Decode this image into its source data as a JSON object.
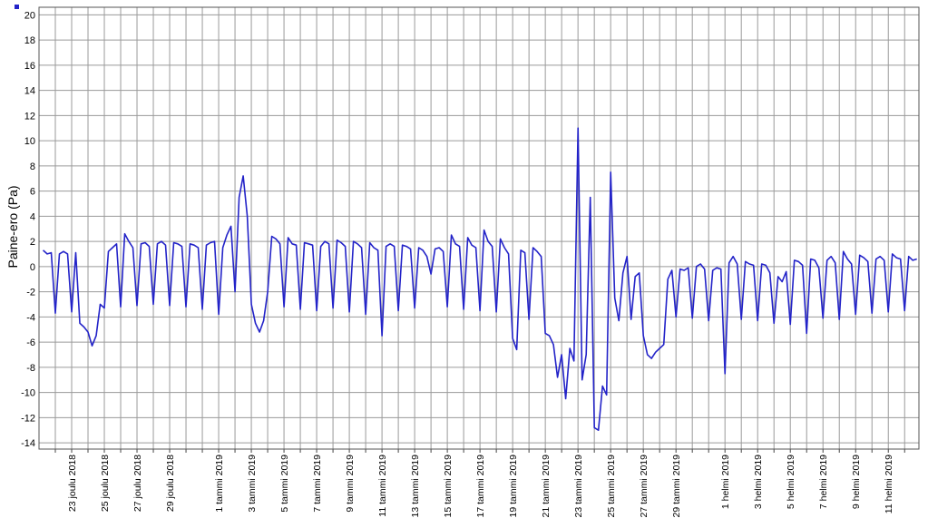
{
  "chart_data": {
    "type": "line",
    "ylabel": "Paine-ero (Pa)",
    "color": "#2323c8",
    "grid": true,
    "ylim": [
      -14.5,
      20.6
    ],
    "yticks": [
      -14,
      -12,
      -10,
      -8,
      -6,
      -4,
      -2,
      0,
      2,
      4,
      6,
      8,
      10,
      12,
      14,
      16,
      18,
      20
    ],
    "xlim": [
      "2018-12-21 00:00",
      "2019-02-12 21:00"
    ],
    "xticks": [
      {
        "value": "2018-12-22",
        "label": null
      },
      {
        "value": "2018-12-23",
        "label": "23 joulu 2018"
      },
      {
        "value": "2018-12-24",
        "label": null
      },
      {
        "value": "2018-12-25",
        "label": "25 joulu 2018"
      },
      {
        "value": "2018-12-26",
        "label": null
      },
      {
        "value": "2018-12-27",
        "label": "27 joulu 2018"
      },
      {
        "value": "2018-12-28",
        "label": null
      },
      {
        "value": "2018-12-29",
        "label": "29 joulu 2018"
      },
      {
        "value": "2018-12-30",
        "label": null
      },
      {
        "value": "2018-12-31",
        "label": null
      },
      {
        "value": "2019-01-01",
        "label": "1 tammi 2019"
      },
      {
        "value": "2019-01-02",
        "label": null
      },
      {
        "value": "2019-01-03",
        "label": "3 tammi 2019"
      },
      {
        "value": "2019-01-04",
        "label": null
      },
      {
        "value": "2019-01-05",
        "label": "5 tammi 2019"
      },
      {
        "value": "2019-01-06",
        "label": null
      },
      {
        "value": "2019-01-07",
        "label": "7 tammi 2019"
      },
      {
        "value": "2019-01-08",
        "label": null
      },
      {
        "value": "2019-01-09",
        "label": "9 tammi 2019"
      },
      {
        "value": "2019-01-10",
        "label": null
      },
      {
        "value": "2019-01-11",
        "label": "11 tammi 2019"
      },
      {
        "value": "2019-01-12",
        "label": null
      },
      {
        "value": "2019-01-13",
        "label": "13 tammi 2019"
      },
      {
        "value": "2019-01-14",
        "label": null
      },
      {
        "value": "2019-01-15",
        "label": "15 tammi 2019"
      },
      {
        "value": "2019-01-16",
        "label": null
      },
      {
        "value": "2019-01-17",
        "label": "17 tammi 2019"
      },
      {
        "value": "2019-01-18",
        "label": null
      },
      {
        "value": "2019-01-19",
        "label": "19 tammi 2019"
      },
      {
        "value": "2019-01-20",
        "label": null
      },
      {
        "value": "2019-01-21",
        "label": "21 tammi 2019"
      },
      {
        "value": "2019-01-22",
        "label": null
      },
      {
        "value": "2019-01-23",
        "label": "23 tammi 2019"
      },
      {
        "value": "2019-01-24",
        "label": null
      },
      {
        "value": "2019-01-25",
        "label": "25 tammi 2019"
      },
      {
        "value": "2019-01-26",
        "label": null
      },
      {
        "value": "2019-01-27",
        "label": "27 tammi 2019"
      },
      {
        "value": "2019-01-28",
        "label": null
      },
      {
        "value": "2019-01-29",
        "label": "29 tammi 2019"
      },
      {
        "value": "2019-01-30",
        "label": null
      },
      {
        "value": "2019-01-31",
        "label": null
      },
      {
        "value": "2019-02-01",
        "label": "1 helmi 2019"
      },
      {
        "value": "2019-02-02",
        "label": null
      },
      {
        "value": "2019-02-03",
        "label": "3 helmi 2019"
      },
      {
        "value": "2019-02-04",
        "label": null
      },
      {
        "value": "2019-02-05",
        "label": "5 helmi 2019"
      },
      {
        "value": "2019-02-06",
        "label": null
      },
      {
        "value": "2019-02-07",
        "label": "7 helmi 2019"
      },
      {
        "value": "2019-02-08",
        "label": null
      },
      {
        "value": "2019-02-09",
        "label": "9 helmi 2019"
      },
      {
        "value": "2019-02-10",
        "label": null
      },
      {
        "value": "2019-02-11",
        "label": "11 helmi 2019"
      },
      {
        "value": "2019-02-12",
        "label": null
      }
    ],
    "x": [
      "2018-12-21 06:00",
      "2018-12-21 12:00",
      "2018-12-21 18:00",
      "2018-12-22 00:00",
      "2018-12-22 06:00",
      "2018-12-22 12:00",
      "2018-12-22 18:00",
      "2018-12-23 00:00",
      "2018-12-23 06:00",
      "2018-12-23 12:00",
      "2018-12-23 18:00",
      "2018-12-24 00:00",
      "2018-12-24 06:00",
      "2018-12-24 12:00",
      "2018-12-24 18:00",
      "2018-12-25 00:00",
      "2018-12-25 06:00",
      "2018-12-25 12:00",
      "2018-12-25 18:00",
      "2018-12-26 00:00",
      "2018-12-26 06:00",
      "2018-12-26 12:00",
      "2018-12-26 18:00",
      "2018-12-27 00:00",
      "2018-12-27 06:00",
      "2018-12-27 12:00",
      "2018-12-27 18:00",
      "2018-12-28 00:00",
      "2018-12-28 06:00",
      "2018-12-28 12:00",
      "2018-12-28 18:00",
      "2018-12-29 00:00",
      "2018-12-29 06:00",
      "2018-12-29 12:00",
      "2018-12-29 18:00",
      "2018-12-30 00:00",
      "2018-12-30 06:00",
      "2018-12-30 12:00",
      "2018-12-30 18:00",
      "2018-12-31 00:00",
      "2018-12-31 06:00",
      "2018-12-31 12:00",
      "2018-12-31 18:00",
      "2019-01-01 00:00",
      "2019-01-01 06:00",
      "2019-01-01 12:00",
      "2019-01-01 18:00",
      "2019-01-02 00:00",
      "2019-01-02 06:00",
      "2019-01-02 12:00",
      "2019-01-02 18:00",
      "2019-01-03 00:00",
      "2019-01-03 06:00",
      "2019-01-03 12:00",
      "2019-01-03 18:00",
      "2019-01-04 00:00",
      "2019-01-04 06:00",
      "2019-01-04 12:00",
      "2019-01-04 18:00",
      "2019-01-05 00:00",
      "2019-01-05 06:00",
      "2019-01-05 12:00",
      "2019-01-05 18:00",
      "2019-01-06 00:00",
      "2019-01-06 06:00",
      "2019-01-06 12:00",
      "2019-01-06 18:00",
      "2019-01-07 00:00",
      "2019-01-07 06:00",
      "2019-01-07 12:00",
      "2019-01-07 18:00",
      "2019-01-08 00:00",
      "2019-01-08 06:00",
      "2019-01-08 12:00",
      "2019-01-08 18:00",
      "2019-01-09 00:00",
      "2019-01-09 06:00",
      "2019-01-09 12:00",
      "2019-01-09 18:00",
      "2019-01-10 00:00",
      "2019-01-10 06:00",
      "2019-01-10 12:00",
      "2019-01-10 18:00",
      "2019-01-11 00:00",
      "2019-01-11 06:00",
      "2019-01-11 12:00",
      "2019-01-11 18:00",
      "2019-01-12 00:00",
      "2019-01-12 06:00",
      "2019-01-12 12:00",
      "2019-01-12 18:00",
      "2019-01-13 00:00",
      "2019-01-13 06:00",
      "2019-01-13 12:00",
      "2019-01-13 18:00",
      "2019-01-14 00:00",
      "2019-01-14 06:00",
      "2019-01-14 12:00",
      "2019-01-14 18:00",
      "2019-01-15 00:00",
      "2019-01-15 06:00",
      "2019-01-15 12:00",
      "2019-01-15 18:00",
      "2019-01-16 00:00",
      "2019-01-16 06:00",
      "2019-01-16 12:00",
      "2019-01-16 18:00",
      "2019-01-17 00:00",
      "2019-01-17 06:00",
      "2019-01-17 12:00",
      "2019-01-17 18:00",
      "2019-01-18 00:00",
      "2019-01-18 06:00",
      "2019-01-18 12:00",
      "2019-01-18 18:00",
      "2019-01-19 00:00",
      "2019-01-19 06:00",
      "2019-01-19 12:00",
      "2019-01-19 18:00",
      "2019-01-20 00:00",
      "2019-01-20 06:00",
      "2019-01-20 12:00",
      "2019-01-20 18:00",
      "2019-01-21 00:00",
      "2019-01-21 06:00",
      "2019-01-21 12:00",
      "2019-01-21 18:00",
      "2019-01-22 00:00",
      "2019-01-22 06:00",
      "2019-01-22 12:00",
      "2019-01-22 18:00",
      "2019-01-23 00:00",
      "2019-01-23 06:00",
      "2019-01-23 12:00",
      "2019-01-23 18:00",
      "2019-01-24 00:00",
      "2019-01-24 06:00",
      "2019-01-24 12:00",
      "2019-01-24 18:00",
      "2019-01-25 00:00",
      "2019-01-25 06:00",
      "2019-01-25 12:00",
      "2019-01-25 18:00",
      "2019-01-26 00:00",
      "2019-01-26 06:00",
      "2019-01-26 12:00",
      "2019-01-26 18:00",
      "2019-01-27 00:00",
      "2019-01-27 06:00",
      "2019-01-27 12:00",
      "2019-01-27 18:00",
      "2019-01-28 00:00",
      "2019-01-28 06:00",
      "2019-01-28 12:00",
      "2019-01-28 18:00",
      "2019-01-29 00:00",
      "2019-01-29 06:00",
      "2019-01-29 12:00",
      "2019-01-29 18:00",
      "2019-01-30 00:00",
      "2019-01-30 06:00",
      "2019-01-30 12:00",
      "2019-01-30 18:00",
      "2019-01-31 00:00",
      "2019-01-31 06:00",
      "2019-01-31 12:00",
      "2019-01-31 18:00",
      "2019-02-01 00:00",
      "2019-02-01 06:00",
      "2019-02-01 12:00",
      "2019-02-01 18:00",
      "2019-02-02 00:00",
      "2019-02-02 06:00",
      "2019-02-02 12:00",
      "2019-02-02 18:00",
      "2019-02-03 00:00",
      "2019-02-03 06:00",
      "2019-02-03 12:00",
      "2019-02-03 18:00",
      "2019-02-04 00:00",
      "2019-02-04 06:00",
      "2019-02-04 12:00",
      "2019-02-04 18:00",
      "2019-02-05 00:00",
      "2019-02-05 06:00",
      "2019-02-05 12:00",
      "2019-02-05 18:00",
      "2019-02-06 00:00",
      "2019-02-06 06:00",
      "2019-02-06 12:00",
      "2019-02-06 18:00",
      "2019-02-07 00:00",
      "2019-02-07 06:00",
      "2019-02-07 12:00",
      "2019-02-07 18:00",
      "2019-02-08 00:00",
      "2019-02-08 06:00",
      "2019-02-08 12:00",
      "2019-02-08 18:00",
      "2019-02-09 00:00",
      "2019-02-09 06:00",
      "2019-02-09 12:00",
      "2019-02-09 18:00",
      "2019-02-10 00:00",
      "2019-02-10 06:00",
      "2019-02-10 12:00",
      "2019-02-10 18:00",
      "2019-02-11 00:00",
      "2019-02-11 06:00",
      "2019-02-11 12:00",
      "2019-02-11 18:00",
      "2019-02-12 00:00",
      "2019-02-12 06:00",
      "2019-02-12 12:00",
      "2019-02-12 18:00"
    ],
    "values": [
      1.3,
      1.0,
      1.1,
      -3.7,
      1.0,
      1.2,
      1.0,
      -3.6,
      1.1,
      -4.5,
      -4.8,
      -5.2,
      -6.3,
      -5.5,
      -3.0,
      -3.3,
      1.2,
      1.5,
      1.8,
      -3.2,
      2.6,
      2.0,
      1.5,
      -3.1,
      1.8,
      1.9,
      1.6,
      -3.0,
      1.8,
      2.0,
      1.7,
      -3.1,
      1.9,
      1.8,
      1.6,
      -3.2,
      1.8,
      1.7,
      1.5,
      -3.4,
      1.7,
      1.9,
      2.0,
      -3.8,
      1.5,
      2.5,
      3.2,
      -2.0,
      5.5,
      7.2,
      4.0,
      -3.0,
      -4.5,
      -5.2,
      -4.3,
      -2.0,
      2.4,
      2.2,
      1.8,
      -3.2,
      2.3,
      1.8,
      1.7,
      -3.4,
      1.9,
      1.8,
      1.7,
      -3.5,
      1.6,
      2.0,
      1.8,
      -3.3,
      2.1,
      1.9,
      1.6,
      -3.6,
      2.0,
      1.8,
      1.5,
      -3.8,
      1.9,
      1.5,
      1.3,
      -5.5,
      1.6,
      1.8,
      1.6,
      -3.5,
      1.7,
      1.6,
      1.4,
      -3.3,
      1.5,
      1.3,
      0.8,
      -0.6,
      1.4,
      1.5,
      1.2,
      -3.2,
      2.5,
      1.8,
      1.6,
      -3.4,
      2.3,
      1.7,
      1.5,
      -3.5,
      2.9,
      2.0,
      1.6,
      -3.6,
      2.2,
      1.5,
      1.0,
      -5.7,
      -6.6,
      1.3,
      1.1,
      -4.2,
      1.5,
      1.2,
      0.8,
      -5.3,
      -5.5,
      -6.2,
      -8.8,
      -7.0,
      -10.5,
      -6.5,
      -7.5,
      11.0,
      -9.0,
      -7.0,
      5.5,
      -12.8,
      -13.0,
      -9.5,
      -10.2,
      7.5,
      -2.5,
      -4.3,
      -0.5,
      0.8,
      -4.2,
      -0.8,
      -0.5,
      -5.5,
      -7.0,
      -7.3,
      -6.8,
      -6.5,
      -6.2,
      -1.0,
      -0.3,
      -4.0,
      -0.2,
      -0.3,
      -0.1,
      -4.1,
      0.0,
      0.2,
      -0.2,
      -4.3,
      -0.3,
      -0.1,
      -0.2,
      -8.5,
      0.3,
      0.8,
      0.2,
      -4.2,
      0.4,
      0.2,
      0.1,
      -4.3,
      0.2,
      0.1,
      -0.5,
      -4.5,
      -0.8,
      -1.2,
      -0.4,
      -4.6,
      0.5,
      0.4,
      0.1,
      -5.3,
      0.6,
      0.5,
      -0.1,
      -4.1,
      0.5,
      0.8,
      0.3,
      -4.2,
      1.2,
      0.6,
      0.2,
      -3.8,
      0.9,
      0.7,
      0.4,
      -3.7,
      0.6,
      0.8,
      0.5,
      -3.6,
      1.0,
      0.7,
      0.6,
      -3.5,
      0.8,
      0.5,
      0.6
    ]
  }
}
